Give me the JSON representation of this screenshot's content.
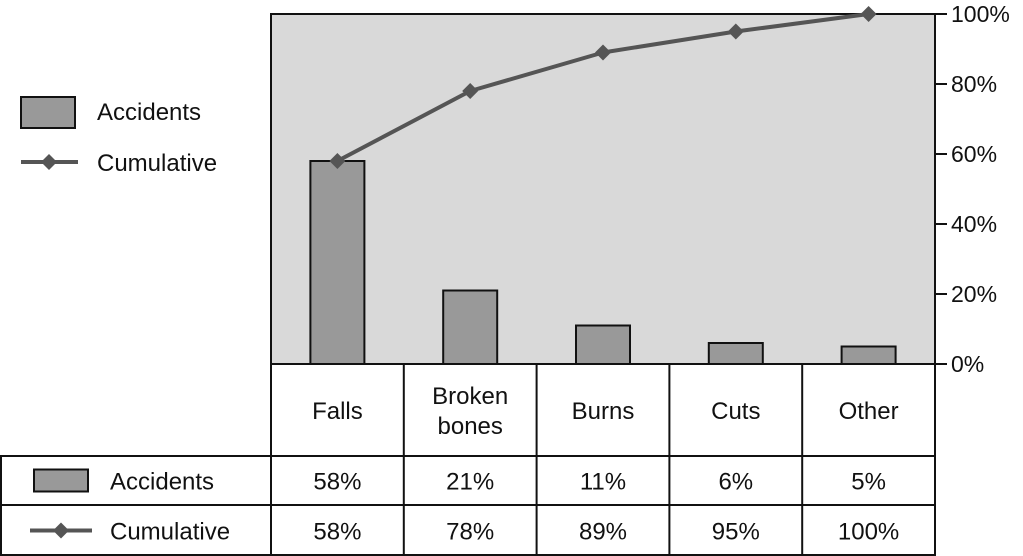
{
  "chart_data": {
    "type": "bar",
    "categories": [
      "Falls",
      "Broken bones",
      "Burns",
      "Cuts",
      "Other"
    ],
    "category_lines": [
      [
        "Falls"
      ],
      [
        "Broken",
        "bones"
      ],
      [
        "Burns"
      ],
      [
        "Cuts"
      ],
      [
        "Other"
      ]
    ],
    "series": [
      {
        "name": "Accidents",
        "type": "bar",
        "values": [
          58,
          21,
          11,
          6,
          5
        ],
        "labels": [
          "58%",
          "21%",
          "11%",
          "6%",
          "5%"
        ]
      },
      {
        "name": "Cumulative",
        "type": "line",
        "values": [
          58,
          78,
          89,
          95,
          100
        ],
        "labels": [
          "58%",
          "78%",
          "89%",
          "95%",
          "100%"
        ]
      }
    ],
    "title": "",
    "xlabel": "",
    "ylabel": "",
    "ylim": [
      0,
      100
    ],
    "yticks": [
      0,
      20,
      40,
      60,
      80,
      100
    ],
    "ytick_labels": [
      "0%",
      "20%",
      "40%",
      "60%",
      "80%",
      "100%"
    ],
    "y_axis_side": "right",
    "legend_position": "left",
    "data_table": true,
    "colors": {
      "plot_background": "#d9d9d9",
      "bar_fill": "#999999",
      "line": "#555555",
      "outline": "#111111"
    }
  }
}
